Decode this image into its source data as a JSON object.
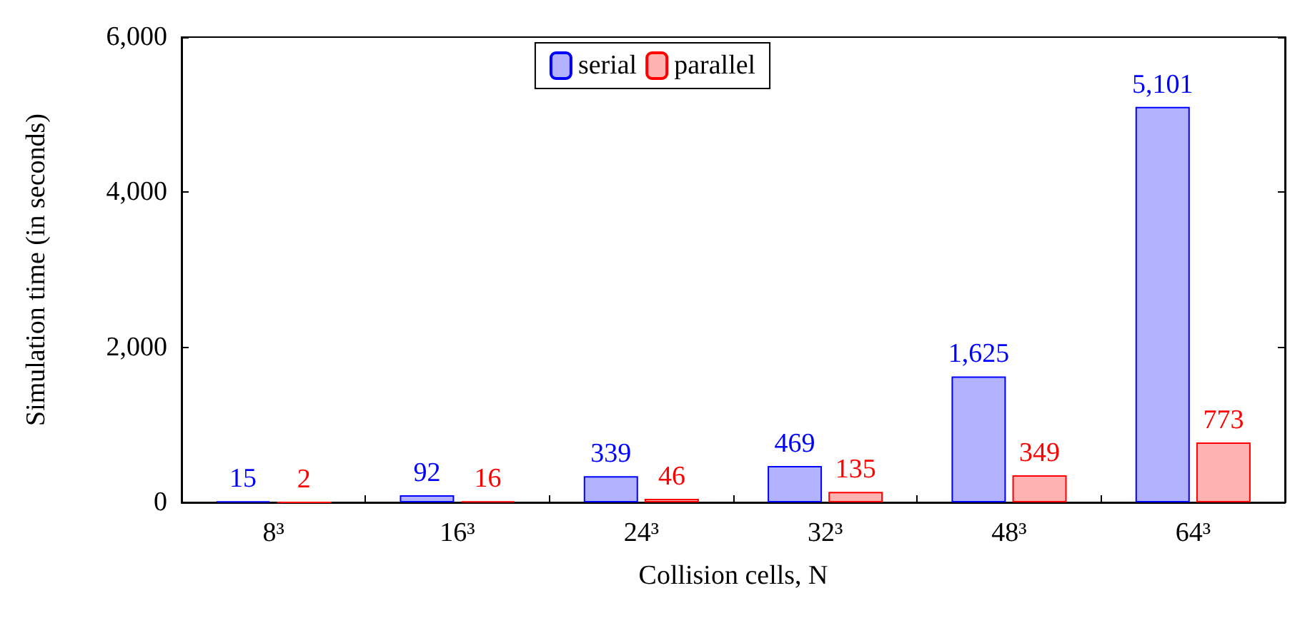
{
  "chart_data": {
    "type": "bar",
    "xlabel": "Collision cells, N",
    "ylabel": "Simulation time (in seconds)",
    "categories": [
      "8³",
      "16³",
      "24³",
      "32³",
      "48³",
      "64³"
    ],
    "series": [
      {
        "name": "serial",
        "color": "#0000ff",
        "values": [
          15,
          92,
          339,
          469,
          1625,
          5101
        ],
        "value_labels": [
          "15",
          "92",
          "339",
          "469",
          "1,625",
          "5,101"
        ]
      },
      {
        "name": "parallel",
        "color": "#ff0000",
        "values": [
          2,
          16,
          46,
          135,
          349,
          773
        ],
        "value_labels": [
          "2",
          "16",
          "46",
          "135",
          "349",
          "773"
        ]
      }
    ],
    "ylim": [
      0,
      6000
    ],
    "yticks": [
      0,
      {
        "value": 2000,
        "label": "2,000"
      },
      {
        "value": 4000,
        "label": "4,000"
      },
      {
        "value": 6000,
        "label": "6,000"
      }
    ],
    "grid": false,
    "legend": "top"
  }
}
